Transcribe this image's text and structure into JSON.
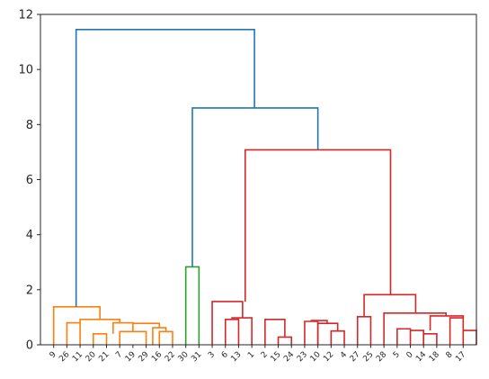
{
  "chart_data": {
    "type": "dendrogram",
    "title": "",
    "xlabel": "",
    "ylabel": "",
    "ylim": [
      0,
      12
    ],
    "yticks": [
      0,
      2,
      4,
      6,
      8,
      10,
      12
    ],
    "grid": false,
    "legend": "none",
    "colors": {
      "orange": "#ff7f0e",
      "green": "#2ca02c",
      "red": "#d62728",
      "blue": "#1f77b4"
    },
    "leaves": [
      "9",
      "26",
      "11",
      "20",
      "21",
      "7",
      "19",
      "29",
      "16",
      "22",
      "30",
      "31",
      "3",
      "6",
      "13",
      "1",
      "2",
      "15",
      "24",
      "23",
      "10",
      "12",
      "4",
      "27",
      "25",
      "28",
      "5",
      "0",
      "14",
      "18",
      "8",
      "17"
    ],
    "links": [
      {
        "x": [
          2,
          2,
          3,
          3
        ],
        "y": [
          0,
          0.8,
          0.8,
          0
        ],
        "color": "orange"
      },
      {
        "x": [
          4,
          4,
          5,
          5
        ],
        "y": [
          0,
          0.4,
          0.4,
          0
        ],
        "color": "orange"
      },
      {
        "x": [
          5.5,
          5.5,
          7,
          7
        ],
        "y": [
          0.4,
          0.8,
          0.8,
          0.48
        ],
        "color": "orange"
      },
      {
        "x": [
          6,
          6,
          8,
          8
        ],
        "y": [
          0,
          0.48,
          0.48,
          0
        ],
        "color": "orange"
      },
      {
        "x": [
          9,
          9,
          10,
          10
        ],
        "y": [
          0,
          0.48,
          0.48,
          0
        ],
        "color": "orange"
      },
      {
        "x": [
          8.5,
          8.5,
          9.5,
          9.5
        ],
        "y": [
          0,
          0.62,
          0.62,
          0.48
        ],
        "color": "orange"
      },
      {
        "x": [
          7,
          7,
          9,
          9
        ],
        "y": [
          0.78,
          0.78,
          0.78,
          0.62
        ],
        "color": "orange"
      },
      {
        "x": [
          3,
          3,
          6,
          6
        ],
        "y": [
          0.8,
          0.92,
          0.92,
          0.78
        ],
        "color": "orange"
      },
      {
        "x": [
          1,
          1,
          4.5,
          4.5
        ],
        "y": [
          0,
          1.38,
          1.38,
          0.92
        ],
        "color": "orange"
      },
      {
        "x": [
          11,
          11,
          12,
          12
        ],
        "y": [
          0,
          2.83,
          2.83,
          0
        ],
        "color": "green"
      },
      {
        "x": [
          14,
          14,
          15,
          15
        ],
        "y": [
          0,
          0.92,
          0.92,
          0
        ],
        "color": "red"
      },
      {
        "x": [
          14.5,
          14.5,
          16,
          16
        ],
        "y": [
          0.92,
          0.98,
          0.98,
          0
        ],
        "color": "red"
      },
      {
        "x": [
          13,
          13,
          15.3,
          15.3
        ],
        "y": [
          0,
          1.57,
          1.57,
          0.98
        ],
        "color": "red"
      },
      {
        "x": [
          18,
          18,
          19,
          19
        ],
        "y": [
          0,
          0.28,
          0.28,
          0
        ],
        "color": "red"
      },
      {
        "x": [
          17,
          17,
          18.5,
          18.5
        ],
        "y": [
          0,
          0.92,
          0.92,
          0.28
        ],
        "color": "red"
      },
      {
        "x": [
          20,
          20,
          21,
          21
        ],
        "y": [
          0,
          0.85,
          0.85,
          0
        ],
        "color": "red"
      },
      {
        "x": [
          22,
          22,
          23,
          23
        ],
        "y": [
          0,
          0.5,
          0.5,
          0
        ],
        "color": "red"
      },
      {
        "x": [
          21,
          21,
          22.5,
          22.5
        ],
        "y": [
          0,
          0.78,
          0.78,
          0.5
        ],
        "color": "red"
      },
      {
        "x": [
          20.5,
          20.5,
          21.7,
          21.7
        ],
        "y": [
          0.85,
          0.88,
          0.88,
          0.78
        ],
        "color": "red"
      },
      {
        "x": [
          24,
          24,
          25,
          25
        ],
        "y": [
          0,
          1.02,
          1.02,
          0
        ],
        "color": "red"
      },
      {
        "x": [
          27,
          27,
          28,
          28
        ],
        "y": [
          0,
          0.58,
          0.58,
          0
        ],
        "color": "red"
      },
      {
        "x": [
          28,
          28,
          29,
          29
        ],
        "y": [
          0.52,
          0.52,
          0.52,
          0
        ],
        "color": "red"
      },
      {
        "x": [
          29,
          29,
          30,
          30
        ],
        "y": [
          0,
          0.4,
          0.4,
          0
        ],
        "color": "red"
      },
      {
        "x": [
          31,
          31,
          32,
          32
        ],
        "y": [
          0,
          0.98,
          0.98,
          0.52
        ],
        "color": "red"
      },
      {
        "x": [
          32,
          32,
          33,
          33
        ],
        "y": [
          0,
          0.52,
          0.52,
          0
        ],
        "color": "red"
      },
      {
        "x": [
          29.5,
          29.5,
          32,
          32
        ],
        "y": [
          0.52,
          1.05,
          1.05,
          0.98
        ],
        "color": "red"
      },
      {
        "x": [
          26,
          26,
          30.7,
          30.7
        ],
        "y": [
          0,
          1.15,
          1.15,
          1.05
        ],
        "color": "red"
      },
      {
        "x": [
          24.5,
          24.5,
          28.4,
          28.4
        ],
        "y": [
          1.02,
          1.82,
          1.82,
          1.15
        ],
        "color": "red"
      },
      {
        "x": [
          15.5,
          15.5,
          26.5,
          26.5
        ],
        "y": [
          1.57,
          7.08,
          7.08,
          1.82
        ],
        "color": "red"
      },
      {
        "x": [
          11.5,
          11.5,
          21,
          21
        ],
        "y": [
          2.83,
          8.6,
          8.6,
          7.08
        ],
        "color": "blue"
      },
      {
        "x": [
          2.7,
          2.7,
          16.2,
          16.2
        ],
        "y": [
          1.38,
          11.45,
          11.45,
          8.6
        ],
        "color": "blue"
      }
    ]
  }
}
